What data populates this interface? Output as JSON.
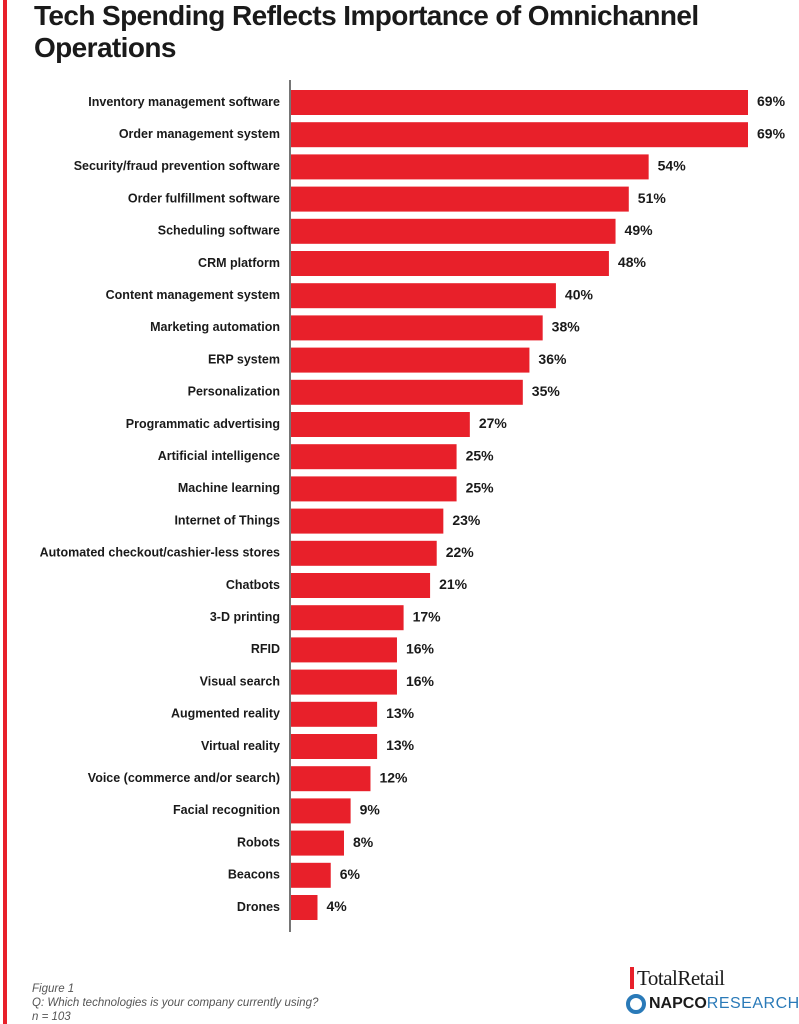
{
  "title": "Tech Spending Reflects Importance of Omnichannel Operations",
  "colors": {
    "bar": "#e8202a",
    "accent": "#e8202a",
    "axis": "#1a1a1a",
    "brand_blue": "#2a7ab8"
  },
  "footer": {
    "figure": "Figure 1",
    "question": "Q: Which technologies is your company currently using?",
    "sample": "n = 103"
  },
  "logo": {
    "top": "TotalRetail",
    "napco": "NAPCO",
    "research": "RESEARCH"
  },
  "chart_data": {
    "type": "bar",
    "orientation": "horizontal",
    "value_suffix": "%",
    "xlim": [
      0,
      69
    ],
    "categories": [
      "Inventory management software",
      "Order management system",
      "Security/fraud prevention software",
      "Order fulfillment software",
      "Scheduling software",
      "CRM platform",
      "Content management system",
      "Marketing automation",
      "ERP system",
      "Personalization",
      "Programmatic advertising",
      "Artificial intelligence",
      "Machine learning",
      "Internet of Things",
      "Automated checkout/cashier-less stores",
      "Chatbots",
      "3-D printing",
      "RFID",
      "Visual search",
      "Augmented reality",
      "Virtual reality",
      "Voice (commerce and/or search)",
      "Facial recognition",
      "Robots",
      "Beacons",
      "Drones"
    ],
    "values": [
      69,
      69,
      54,
      51,
      49,
      48,
      40,
      38,
      36,
      35,
      27,
      25,
      25,
      23,
      22,
      21,
      17,
      16,
      16,
      13,
      13,
      12,
      9,
      8,
      6,
      4
    ],
    "labels": [
      "69%",
      "69%",
      "54%",
      "51%",
      "49%",
      "48%",
      "40%",
      "38%",
      "36%",
      "35%",
      "27%",
      "25%",
      "25%",
      "23%",
      "22%",
      "21%",
      "17%",
      "16%",
      "16%",
      "13%",
      "13%",
      "12%",
      "9%",
      "8%",
      "6%",
      "4%"
    ],
    "grid": false,
    "legend": "none"
  }
}
